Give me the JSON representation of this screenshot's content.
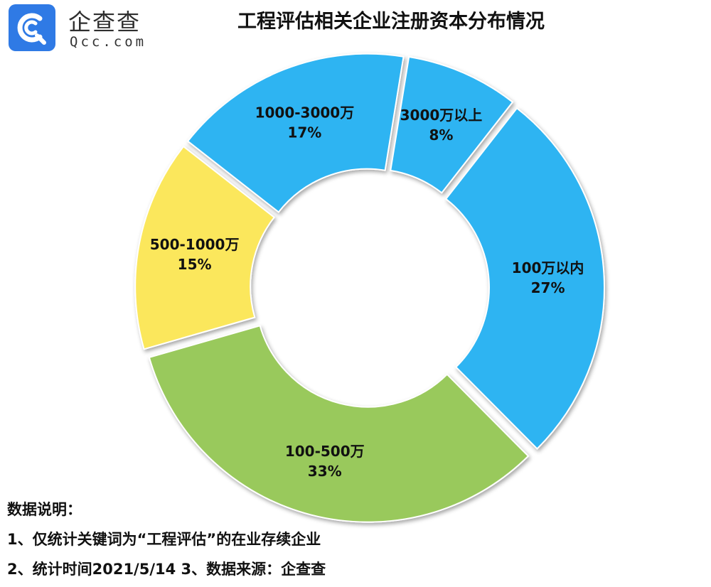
{
  "logo": {
    "name": "企查查",
    "domain": "Qcc.com"
  },
  "chart_data": {
    "type": "pie",
    "title": "工程评估相关企业注册资本分布情况",
    "donut": true,
    "slices": [
      {
        "label": "100万以内",
        "value": 27,
        "pct_text": "27%",
        "color": "#2fb4f2"
      },
      {
        "label": "100-500万",
        "value": 33,
        "pct_text": "33%",
        "color": "#99c95c"
      },
      {
        "label": "500-1000万",
        "value": 15,
        "pct_text": "15%",
        "color": "#fbe75c"
      },
      {
        "label": "1000-3000万",
        "value": 17,
        "pct_text": "17%",
        "color": "#2fb4f2"
      },
      {
        "label": "3000万以上",
        "value": 8,
        "pct_text": "8%",
        "color": "#2fb4f2"
      }
    ]
  },
  "notes": {
    "heading": "数据说明：",
    "line1": "1、仅统计关键词为“工程评估”的在业存续企业",
    "line2": "2、统计时间2021/5/14   3、数据来源：企查查"
  }
}
